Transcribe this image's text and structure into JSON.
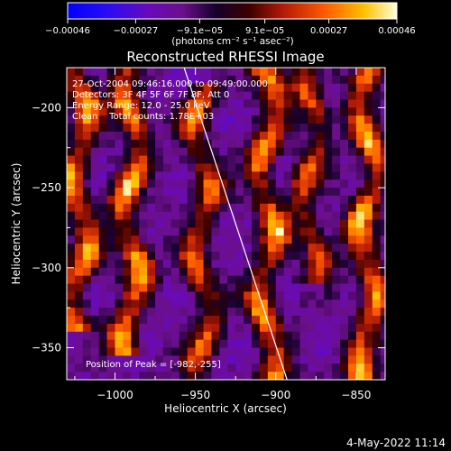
{
  "chart_data": {
    "type": "heatmap",
    "title": "Reconstructed RHESSI Image",
    "xlabel": "Heliocentric X (arcsec)",
    "ylabel": "Heliocentric Y (arcsec)",
    "xlim": [
      -1030,
      -832
    ],
    "ylim": [
      -370,
      -175
    ],
    "x_ticks": [
      {
        "value": -1000,
        "label": "−1000"
      },
      {
        "value": -950,
        "label": "−950"
      },
      {
        "value": -900,
        "label": "−900"
      },
      {
        "value": -850,
        "label": "−850"
      }
    ],
    "y_ticks": [
      {
        "value": -200,
        "label": "−200"
      },
      {
        "value": -250,
        "label": "−250"
      },
      {
        "value": -300,
        "label": "−300"
      },
      {
        "value": -350,
        "label": "−350"
      }
    ],
    "colorbar": {
      "range": [
        -0.00046,
        0.00046
      ],
      "ticks": [
        {
          "value": -0.00046,
          "label": "−0.00046"
        },
        {
          "value": -0.00027,
          "label": "−0.00027"
        },
        {
          "value": -9.1e-05,
          "label": "−9.1e−05"
        },
        {
          "value": 9.1e-05,
          "label": "9.1e−05"
        },
        {
          "value": 0.00027,
          "label": "0.00027"
        },
        {
          "value": 0.00046,
          "label": "0.00046"
        }
      ],
      "units": "(photons cm⁻² s⁻¹ asec⁻²)"
    },
    "annotations": [
      "27-Oct-2004 09:46:16.000 to 09:49:00.000",
      "Detectors: 3F 4F 5F 6F 7F 8F, Att 0",
      "Energy Range: 12.0 - 25.0 keV",
      "Clean    Total counts: 1.78E+03"
    ],
    "peak_label": "Position of Peak = [-982,-255]",
    "limb_line": [
      {
        "x": -957,
        "y": -175
      },
      {
        "x": -893,
        "y": -370
      }
    ],
    "bright_ridges": [
      {
        "x": -1022,
        "y_range": [
          -175,
          -330
        ],
        "intensity": 0.9
      },
      {
        "x": -990,
        "y_range": [
          -175,
          -345
        ],
        "intensity": 0.95
      },
      {
        "x": -946,
        "y_range": [
          -195,
          -365
        ],
        "intensity": 0.75
      },
      {
        "x": -905,
        "y_range": [
          -175,
          -370
        ],
        "intensity": 0.9
      },
      {
        "x": -878,
        "y_range": [
          -175,
          -300
        ],
        "intensity": 0.7
      },
      {
        "x": -843,
        "y_range": [
          -175,
          -370
        ],
        "intensity": 0.95
      }
    ]
  },
  "footer": {
    "timestamp": "4-May-2022 11:14"
  }
}
